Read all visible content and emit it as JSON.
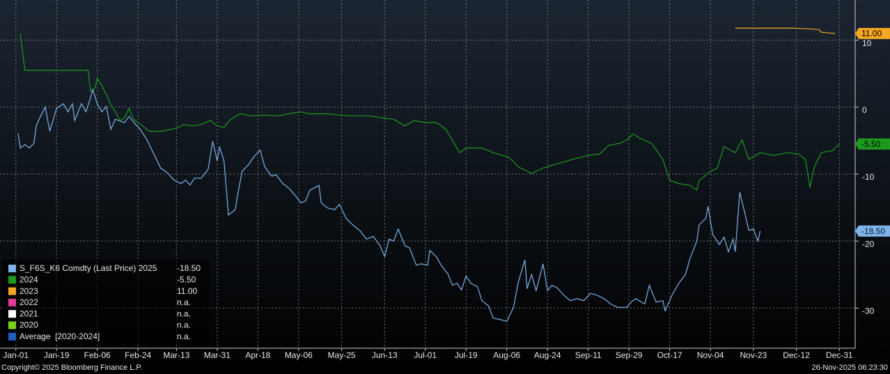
{
  "chart_data": {
    "type": "line",
    "xlim": [
      -7,
      371
    ],
    "ylim": [
      -36,
      16
    ],
    "xticks": [
      {
        "value": 0,
        "label": "Jan-01"
      },
      {
        "value": 18,
        "label": "Jan-19"
      },
      {
        "value": 36,
        "label": "Feb-06"
      },
      {
        "value": 54,
        "label": "Feb-24"
      },
      {
        "value": 71,
        "label": "Mar-13"
      },
      {
        "value": 89,
        "label": "Mar-31"
      },
      {
        "value": 107,
        "label": "Apr-18"
      },
      {
        "value": 125,
        "label": "May-06"
      },
      {
        "value": 144,
        "label": "May-25"
      },
      {
        "value": 163,
        "label": "Jun-13"
      },
      {
        "value": 181,
        "label": "Jul-01"
      },
      {
        "value": 199,
        "label": "Jul-19"
      },
      {
        "value": 217,
        "label": "Aug-06"
      },
      {
        "value": 235,
        "label": "Aug-24"
      },
      {
        "value": 253,
        "label": "Sep-11"
      },
      {
        "value": 271,
        "label": "Sep-29"
      },
      {
        "value": 289,
        "label": "Oct-17"
      },
      {
        "value": 307,
        "label": "Nov-04"
      },
      {
        "value": 326,
        "label": "Nov-23"
      },
      {
        "value": 345,
        "label": "Dec-12"
      },
      {
        "value": 364,
        "label": "Dec-31"
      }
    ],
    "yticks": [
      10,
      0,
      -10,
      -20,
      -30
    ],
    "grid": true,
    "legend": "lower left",
    "series": [
      {
        "name": "S_F6S_K6 Comdty (Last Price) 2025",
        "color": "#7fb4ea",
        "last_label": "-18.50",
        "x": [
          1,
          2,
          4,
          6,
          8,
          9,
          11,
          13,
          15,
          17,
          18,
          21,
          23,
          25,
          26,
          29,
          31,
          33,
          34,
          36,
          38,
          40,
          42,
          44,
          48,
          50,
          53,
          55,
          58,
          61,
          64,
          67,
          70,
          73,
          75,
          77,
          79,
          82,
          85,
          87,
          89,
          90,
          92,
          94,
          97,
          98,
          100,
          103,
          105,
          108,
          110,
          113,
          115,
          118,
          121,
          123,
          126,
          128,
          130,
          134,
          135,
          138,
          141,
          143,
          146,
          149,
          152,
          155,
          158,
          161,
          163,
          165,
          167,
          169,
          172,
          174,
          177,
          179,
          182,
          183,
          186,
          188,
          191,
          193,
          195,
          197,
          199,
          201,
          204,
          206,
          209,
          211,
          214,
          217,
          220,
          222,
          225,
          226,
          228,
          230,
          233,
          235,
          237,
          239,
          242,
          245,
          248,
          251,
          254,
          257,
          260,
          263,
          266,
          270,
          272,
          274,
          278,
          280,
          283,
          286,
          287,
          290,
          293,
          296,
          298,
          301,
          302,
          305,
          306,
          308,
          311,
          313,
          315,
          317,
          318,
          320,
          322,
          324,
          326,
          328,
          329
        ],
        "values": [
          -3.9,
          -6.1,
          -5.6,
          -6.1,
          -5.4,
          -2.8,
          -1.3,
          0,
          -3.6,
          -1.3,
          -0.2,
          0.5,
          -0.7,
          0.5,
          -2.0,
          0.5,
          -0.7,
          1.4,
          2.6,
          0.5,
          -0.7,
          0.1,
          -3.3,
          -1.8,
          -2.3,
          -1.4,
          -2.6,
          -3.3,
          -4.9,
          -7.0,
          -9.1,
          -9.8,
          -10.9,
          -11.4,
          -10.9,
          -11.6,
          -10.6,
          -10.6,
          -9.3,
          -5.1,
          -8.0,
          -5.9,
          -8.0,
          -16.1,
          -15.3,
          -13.2,
          -9.6,
          -8.5,
          -7.5,
          -6.4,
          -8.9,
          -10.3,
          -10.1,
          -11.4,
          -12.2,
          -13.0,
          -14.3,
          -14.0,
          -12.4,
          -11.7,
          -14.3,
          -15.1,
          -15.3,
          -14.5,
          -16.6,
          -17.6,
          -18.4,
          -19.7,
          -19.3,
          -20.7,
          -22.3,
          -19.7,
          -20.0,
          -18.2,
          -20.7,
          -21.0,
          -23.6,
          -23.4,
          -23.6,
          -21.4,
          -22.4,
          -23.6,
          -24.9,
          -26.6,
          -26.3,
          -27.3,
          -25.2,
          -26.3,
          -26.8,
          -28.9,
          -29.7,
          -31.5,
          -31.7,
          -32.0,
          -29.9,
          -26.3,
          -22.8,
          -27.1,
          -25.0,
          -27.4,
          -23.4,
          -27.4,
          -26.6,
          -26.9,
          -28.0,
          -28.9,
          -28.6,
          -28.9,
          -27.8,
          -28.1,
          -28.6,
          -29.4,
          -29.9,
          -29.9,
          -29.1,
          -28.6,
          -29.4,
          -26.6,
          -29.1,
          -28.9,
          -30.4,
          -28.1,
          -26.3,
          -25.0,
          -22.6,
          -20.0,
          -17.6,
          -16.6,
          -14.8,
          -19.0,
          -20.5,
          -19.4,
          -21.6,
          -19.7,
          -21.6,
          -12.7,
          -15.5,
          -18.4,
          -18.2,
          -20.0,
          -18.5
        ]
      },
      {
        "name": "2024",
        "color": "#1e9a1e",
        "last_label": "-5.50",
        "x": [
          2,
          4,
          32,
          33,
          35,
          36,
          38,
          40,
          42,
          44,
          46,
          48,
          50,
          52,
          54,
          56,
          59,
          64,
          69,
          72,
          74,
          78,
          82,
          86,
          89,
          92,
          95,
          99,
          104,
          110,
          116,
          122,
          126,
          130,
          138,
          147,
          156,
          162,
          167,
          172,
          176,
          181,
          186,
          190,
          193,
          196,
          199,
          206,
          211,
          218,
          222,
          228,
          233,
          239,
          246,
          253,
          258,
          262,
          267,
          270,
          273,
          276,
          281,
          286,
          289,
          293,
          298,
          301,
          302,
          307,
          310,
          313,
          318,
          321,
          324,
          329,
          335,
          341,
          346,
          349,
          351,
          353,
          356,
          361,
          364
        ],
        "values": [
          11.0,
          5.5,
          5.5,
          2.4,
          2.9,
          4.3,
          3.2,
          1.9,
          0.3,
          -0.7,
          -2.0,
          -1.6,
          -0.2,
          -1.8,
          -2.3,
          -2.8,
          -3.6,
          -3.6,
          -3.3,
          -3.0,
          -2.6,
          -2.8,
          -2.6,
          -2.0,
          -2.8,
          -3.0,
          -1.8,
          -1.0,
          -1.3,
          -1.2,
          -1.3,
          -0.9,
          -0.7,
          -1.0,
          -1.0,
          -1.3,
          -1.3,
          -1.6,
          -1.8,
          -2.8,
          -2.0,
          -2.3,
          -2.3,
          -3.3,
          -4.9,
          -6.8,
          -6.1,
          -6.1,
          -6.8,
          -7.5,
          -8.9,
          -9.9,
          -9.1,
          -8.5,
          -7.8,
          -7.2,
          -7.0,
          -5.7,
          -5.4,
          -4.9,
          -4.0,
          -4.7,
          -5.4,
          -7.8,
          -10.9,
          -11.4,
          -11.7,
          -12.4,
          -11.0,
          -9.6,
          -9.1,
          -5.9,
          -6.8,
          -4.9,
          -7.8,
          -6.8,
          -7.2,
          -6.8,
          -7.0,
          -7.8,
          -12.0,
          -8.9,
          -6.8,
          -6.5,
          -5.5
        ]
      },
      {
        "name": "2023",
        "color": "#f5a623",
        "last_label": "11.00",
        "x": [
          318,
          344,
          355,
          356,
          362
        ],
        "values": [
          11.8,
          11.8,
          11.6,
          11.2,
          11.0
        ]
      },
      {
        "name": "2022",
        "color": "#e0399a",
        "last_label": "n.a.",
        "x": [],
        "values": []
      },
      {
        "name": "2021",
        "color": "#ffffff",
        "last_label": "n.a.",
        "x": [],
        "values": []
      },
      {
        "name": "2020",
        "color": "#7ed321",
        "last_label": "n.a.",
        "x": [],
        "values": []
      },
      {
        "name": "Average  [2020-2024]",
        "color": "#1f5fbf",
        "last_label": "n.a.",
        "x": [],
        "values": []
      }
    ]
  },
  "footer": {
    "copyright": "Copyright© 2025 Bloomberg Finance L.P.",
    "timestamp": "26-Nov-2025 06:23:30"
  }
}
